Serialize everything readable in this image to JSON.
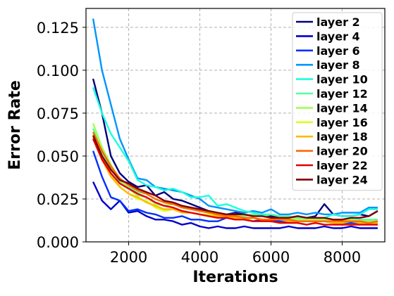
{
  "chart_data": {
    "type": "line",
    "xlabel": "Iterations",
    "ylabel": "Error Rate",
    "xlim": [
      800,
      9200
    ],
    "ylim": [
      0,
      0.136
    ],
    "x_ticks": [
      2000,
      4000,
      6000,
      8000
    ],
    "x_tick_labels": [
      "2000",
      "4000",
      "6000",
      "8000"
    ],
    "y_ticks": [
      0,
      0.025,
      0.05,
      0.075,
      0.1,
      0.125
    ],
    "y_tick_labels": [
      "0.000",
      "0.025",
      "0.050",
      "0.075",
      "0.100",
      "0.125"
    ],
    "grid": true,
    "legend_position": "top-right",
    "x": [
      1000,
      1250,
      1500,
      1750,
      2000,
      2250,
      2500,
      2750,
      3000,
      3250,
      3500,
      3750,
      4000,
      4250,
      4500,
      4750,
      5000,
      5250,
      5500,
      5750,
      6000,
      6250,
      6500,
      6750,
      7000,
      7250,
      7500,
      7750,
      8000,
      8250,
      8500,
      8750,
      9000
    ],
    "series": [
      {
        "name": "layer 2",
        "color": "#00007f",
        "values": [
          0.095,
          0.075,
          0.05,
          0.04,
          0.035,
          0.032,
          0.033,
          0.027,
          0.029,
          0.025,
          0.024,
          0.022,
          0.02,
          0.018,
          0.015,
          0.016,
          0.017,
          0.016,
          0.015,
          0.016,
          0.015,
          0.014,
          0.014,
          0.015,
          0.014,
          0.015,
          0.022,
          0.016,
          0.015,
          0.015,
          0.016,
          0.015,
          0.018
        ]
      },
      {
        "name": "layer 4",
        "color": "#0000c8",
        "values": [
          0.035,
          0.024,
          0.019,
          0.024,
          0.017,
          0.018,
          0.015,
          0.013,
          0.013,
          0.012,
          0.01,
          0.011,
          0.009,
          0.008,
          0.009,
          0.008,
          0.008,
          0.009,
          0.008,
          0.008,
          0.008,
          0.008,
          0.009,
          0.008,
          0.008,
          0.008,
          0.009,
          0.008,
          0.008,
          0.009,
          0.008,
          0.008,
          0.008
        ]
      },
      {
        "name": "layer 6",
        "color": "#0030ff",
        "values": [
          0.053,
          0.038,
          0.026,
          0.024,
          0.018,
          0.019,
          0.017,
          0.016,
          0.014,
          0.014,
          0.015,
          0.013,
          0.013,
          0.012,
          0.012,
          0.014,
          0.013,
          0.013,
          0.012,
          0.013,
          0.012,
          0.012,
          0.012,
          0.012,
          0.012,
          0.012,
          0.012,
          0.011,
          0.011,
          0.011,
          0.011,
          0.011,
          0.011
        ]
      },
      {
        "name": "layer 8",
        "color": "#0094ff",
        "values": [
          0.13,
          0.1,
          0.08,
          0.06,
          0.048,
          0.037,
          0.036,
          0.032,
          0.031,
          0.03,
          0.029,
          0.027,
          0.025,
          0.021,
          0.02,
          0.019,
          0.018,
          0.017,
          0.018,
          0.017,
          0.019,
          0.016,
          0.016,
          0.017,
          0.016,
          0.017,
          0.016,
          0.016,
          0.017,
          0.017,
          0.017,
          0.02,
          0.02
        ]
      },
      {
        "name": "layer 10",
        "color": "#1cffdb",
        "values": [
          0.09,
          0.075,
          0.063,
          0.055,
          0.047,
          0.036,
          0.033,
          0.032,
          0.03,
          0.031,
          0.029,
          0.026,
          0.026,
          0.027,
          0.021,
          0.022,
          0.02,
          0.018,
          0.017,
          0.016,
          0.016,
          0.015,
          0.014,
          0.015,
          0.014,
          0.014,
          0.014,
          0.016,
          0.015,
          0.015,
          0.016,
          0.019,
          0.019
        ]
      },
      {
        "name": "layer 12",
        "color": "#56ffa0",
        "values": [
          0.066,
          0.052,
          0.043,
          0.035,
          0.032,
          0.029,
          0.028,
          0.025,
          0.023,
          0.022,
          0.021,
          0.02,
          0.018,
          0.018,
          0.017,
          0.016,
          0.016,
          0.015,
          0.016,
          0.015,
          0.016,
          0.015,
          0.015,
          0.014,
          0.014,
          0.014,
          0.013,
          0.013,
          0.013,
          0.013,
          0.013,
          0.013,
          0.013
        ]
      },
      {
        "name": "layer 14",
        "color": "#a0ff56",
        "values": [
          0.069,
          0.055,
          0.045,
          0.036,
          0.031,
          0.027,
          0.026,
          0.022,
          0.021,
          0.022,
          0.02,
          0.019,
          0.018,
          0.017,
          0.017,
          0.016,
          0.015,
          0.016,
          0.015,
          0.015,
          0.014,
          0.014,
          0.014,
          0.013,
          0.013,
          0.013,
          0.013,
          0.013,
          0.012,
          0.013,
          0.012,
          0.012,
          0.012
        ]
      },
      {
        "name": "layer 16",
        "color": "#dbff1c",
        "values": [
          0.063,
          0.05,
          0.04,
          0.032,
          0.028,
          0.025,
          0.024,
          0.02,
          0.018,
          0.019,
          0.018,
          0.017,
          0.016,
          0.016,
          0.015,
          0.015,
          0.014,
          0.014,
          0.014,
          0.013,
          0.013,
          0.013,
          0.013,
          0.012,
          0.012,
          0.012,
          0.012,
          0.012,
          0.012,
          0.012,
          0.012,
          0.011,
          0.011
        ]
      },
      {
        "name": "layer 18",
        "color": "#ffb900",
        "values": [
          0.061,
          0.048,
          0.038,
          0.032,
          0.028,
          0.026,
          0.023,
          0.021,
          0.019,
          0.019,
          0.017,
          0.017,
          0.016,
          0.015,
          0.015,
          0.014,
          0.014,
          0.013,
          0.014,
          0.013,
          0.013,
          0.013,
          0.012,
          0.012,
          0.012,
          0.012,
          0.012,
          0.011,
          0.011,
          0.012,
          0.011,
          0.011,
          0.011
        ]
      },
      {
        "name": "layer 20",
        "color": "#ff6800",
        "values": [
          0.064,
          0.053,
          0.044,
          0.037,
          0.033,
          0.03,
          0.028,
          0.025,
          0.023,
          0.022,
          0.02,
          0.019,
          0.018,
          0.017,
          0.016,
          0.015,
          0.015,
          0.014,
          0.014,
          0.013,
          0.013,
          0.013,
          0.013,
          0.012,
          0.012,
          0.012,
          0.012,
          0.012,
          0.012,
          0.012,
          0.012,
          0.011,
          0.012
        ]
      },
      {
        "name": "layer 22",
        "color": "#e40000",
        "values": [
          0.06,
          0.048,
          0.04,
          0.034,
          0.031,
          0.028,
          0.026,
          0.023,
          0.021,
          0.02,
          0.018,
          0.017,
          0.016,
          0.015,
          0.014,
          0.014,
          0.013,
          0.013,
          0.012,
          0.012,
          0.012,
          0.011,
          0.011,
          0.011,
          0.01,
          0.011,
          0.01,
          0.01,
          0.01,
          0.01,
          0.01,
          0.01,
          0.01
        ]
      },
      {
        "name": "layer 24",
        "color": "#7f0000",
        "values": [
          0.062,
          0.05,
          0.042,
          0.036,
          0.034,
          0.031,
          0.029,
          0.027,
          0.024,
          0.023,
          0.021,
          0.02,
          0.019,
          0.018,
          0.017,
          0.016,
          0.016,
          0.016,
          0.015,
          0.015,
          0.014,
          0.014,
          0.014,
          0.015,
          0.014,
          0.014,
          0.014,
          0.013,
          0.013,
          0.014,
          0.014,
          0.015,
          0.018
        ]
      }
    ]
  }
}
